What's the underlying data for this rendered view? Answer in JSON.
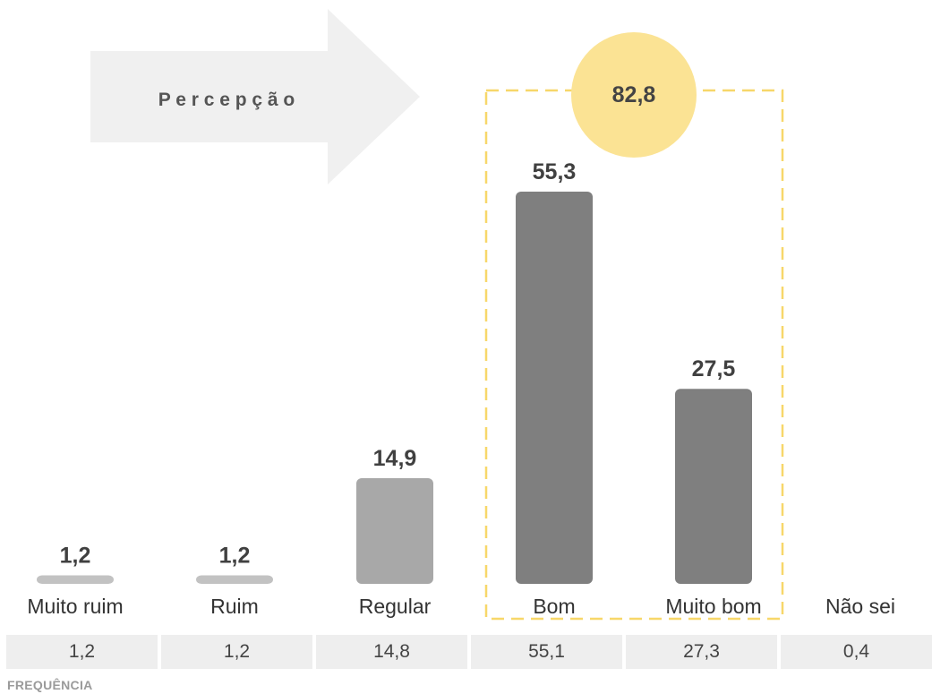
{
  "banner": {
    "label": "P e r c e p ç ã o"
  },
  "highlight": {
    "total_label": "82,8",
    "color": "#fbe394",
    "border_color": "#f7d76a"
  },
  "chart_data": {
    "type": "bar",
    "categories": [
      "Muito ruim",
      "Ruim",
      "Regular",
      "Bom",
      "Muito bom",
      "Não sei"
    ],
    "values": [
      1.2,
      1.2,
      14.9,
      55.3,
      27.5,
      null
    ],
    "value_labels": [
      "1,2",
      "1,2",
      "14,9",
      "55,3",
      "27,5",
      ""
    ],
    "bar_colors": [
      "#c2c2c2",
      "#c2c2c2",
      "#a8a8a8",
      "#7f7f7f",
      "#7f7f7f",
      "#7f7f7f"
    ],
    "ylim": [
      0,
      62
    ],
    "grid": false,
    "title": "",
    "xlabel": "",
    "ylabel": ""
  },
  "frequency": {
    "label": "FREQUÊNCIA",
    "values": [
      "1,2",
      "1,2",
      "14,8",
      "55,1",
      "27,3",
      "0,4"
    ]
  }
}
